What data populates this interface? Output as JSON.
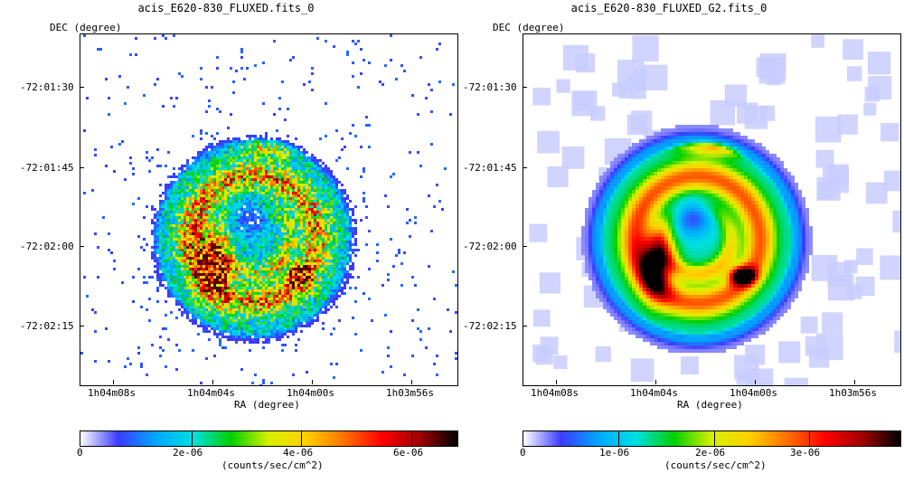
{
  "colors": {
    "cmap": [
      "#ffffff",
      "#3b3bff",
      "#00a8ff",
      "#00e0e0",
      "#00d000",
      "#d8f000",
      "#ffd000",
      "#ff7000",
      "#ff0000",
      "#a00000",
      "#000000"
    ]
  },
  "panels": [
    {
      "title": "acis_E620-830_FLUXED.fits_0",
      "dec_label": "DEC (degree)",
      "ra_label": "RA (degree)",
      "dec_ticks": [
        "-72:01:30",
        "-72:01:45",
        "-72:02:00",
        "-72:02:15"
      ],
      "ra_ticks": [
        "1h04m08s",
        "1h04m04s",
        "1h04m00s",
        "1h03m56s"
      ],
      "colorbar": {
        "label": "(counts/sec/cm^2)",
        "ticks": [
          "0",
          "2e-06",
          "4e-06",
          "6e-06"
        ]
      }
    },
    {
      "title": "acis_E620-830_FLUXED_G2.fits_0",
      "dec_label": "DEC (degree)",
      "ra_label": "RA (degree)",
      "dec_ticks": [
        "-72:01:30",
        "-72:01:45",
        "-72:02:00",
        "-72:02:15"
      ],
      "ra_ticks": [
        "1h04m08s",
        "1h04m04s",
        "1h04m00s",
        "1h03m56s"
      ],
      "colorbar": {
        "label": "(counts/sec/cm^2)",
        "ticks": [
          "0",
          "1e-06",
          "2e-06",
          "3e-06"
        ]
      }
    }
  ]
}
